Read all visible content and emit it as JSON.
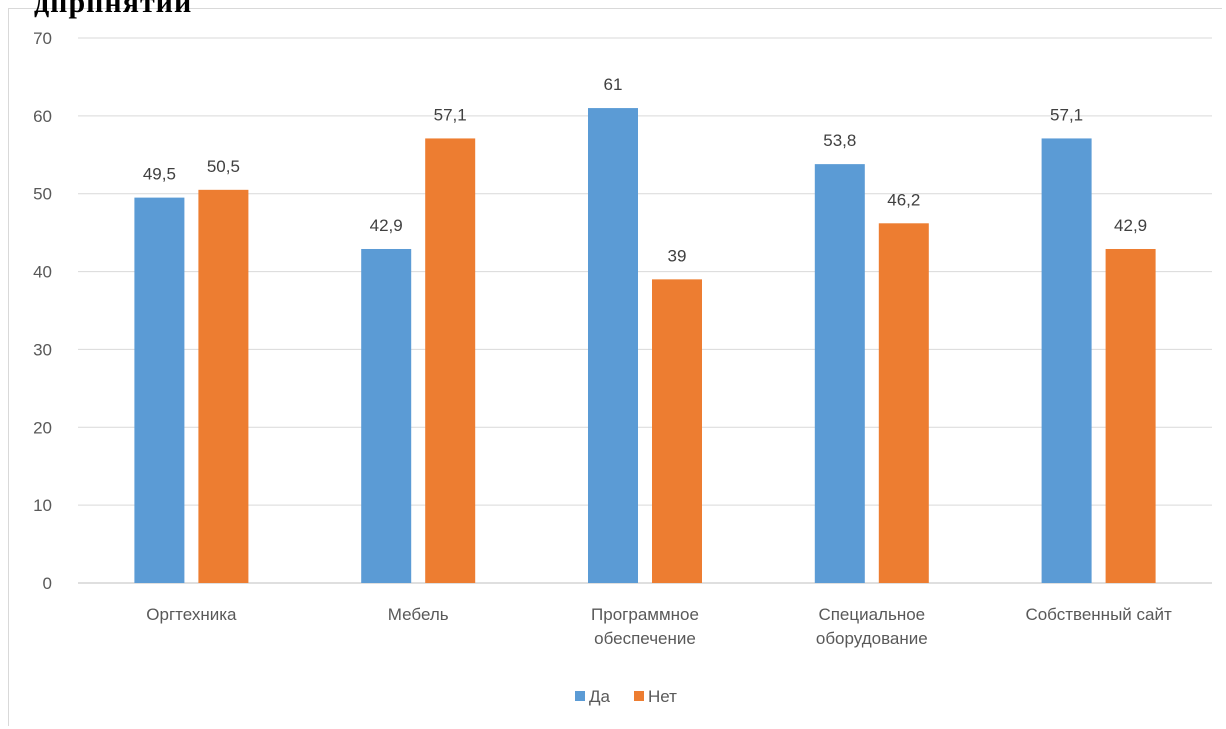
{
  "page_fragment": "дпрпнятий",
  "chart_data": {
    "type": "bar",
    "categories": [
      [
        "Оргтехника"
      ],
      [
        "Мебель"
      ],
      [
        "Программное",
        "обеспечение"
      ],
      [
        "Специальное",
        "оборудование"
      ],
      [
        "Собственный сайт"
      ]
    ],
    "series": [
      {
        "name": "Да",
        "color": "#5b9bd5",
        "values": [
          49.5,
          42.9,
          61,
          53.8,
          57.1
        ],
        "labels": [
          "49,5",
          "42,9",
          "61",
          "53,8",
          "57,1"
        ]
      },
      {
        "name": "Нет",
        "color": "#ed7d31",
        "values": [
          50.5,
          57.1,
          39,
          46.2,
          42.9
        ],
        "labels": [
          "50,5",
          "57,1",
          "39",
          "46,2",
          "42,9"
        ]
      }
    ],
    "ylim": [
      0,
      70
    ],
    "yticks": [
      0,
      10,
      20,
      30,
      40,
      50,
      60,
      70
    ],
    "grid": true,
    "legend": "bottom-center"
  }
}
